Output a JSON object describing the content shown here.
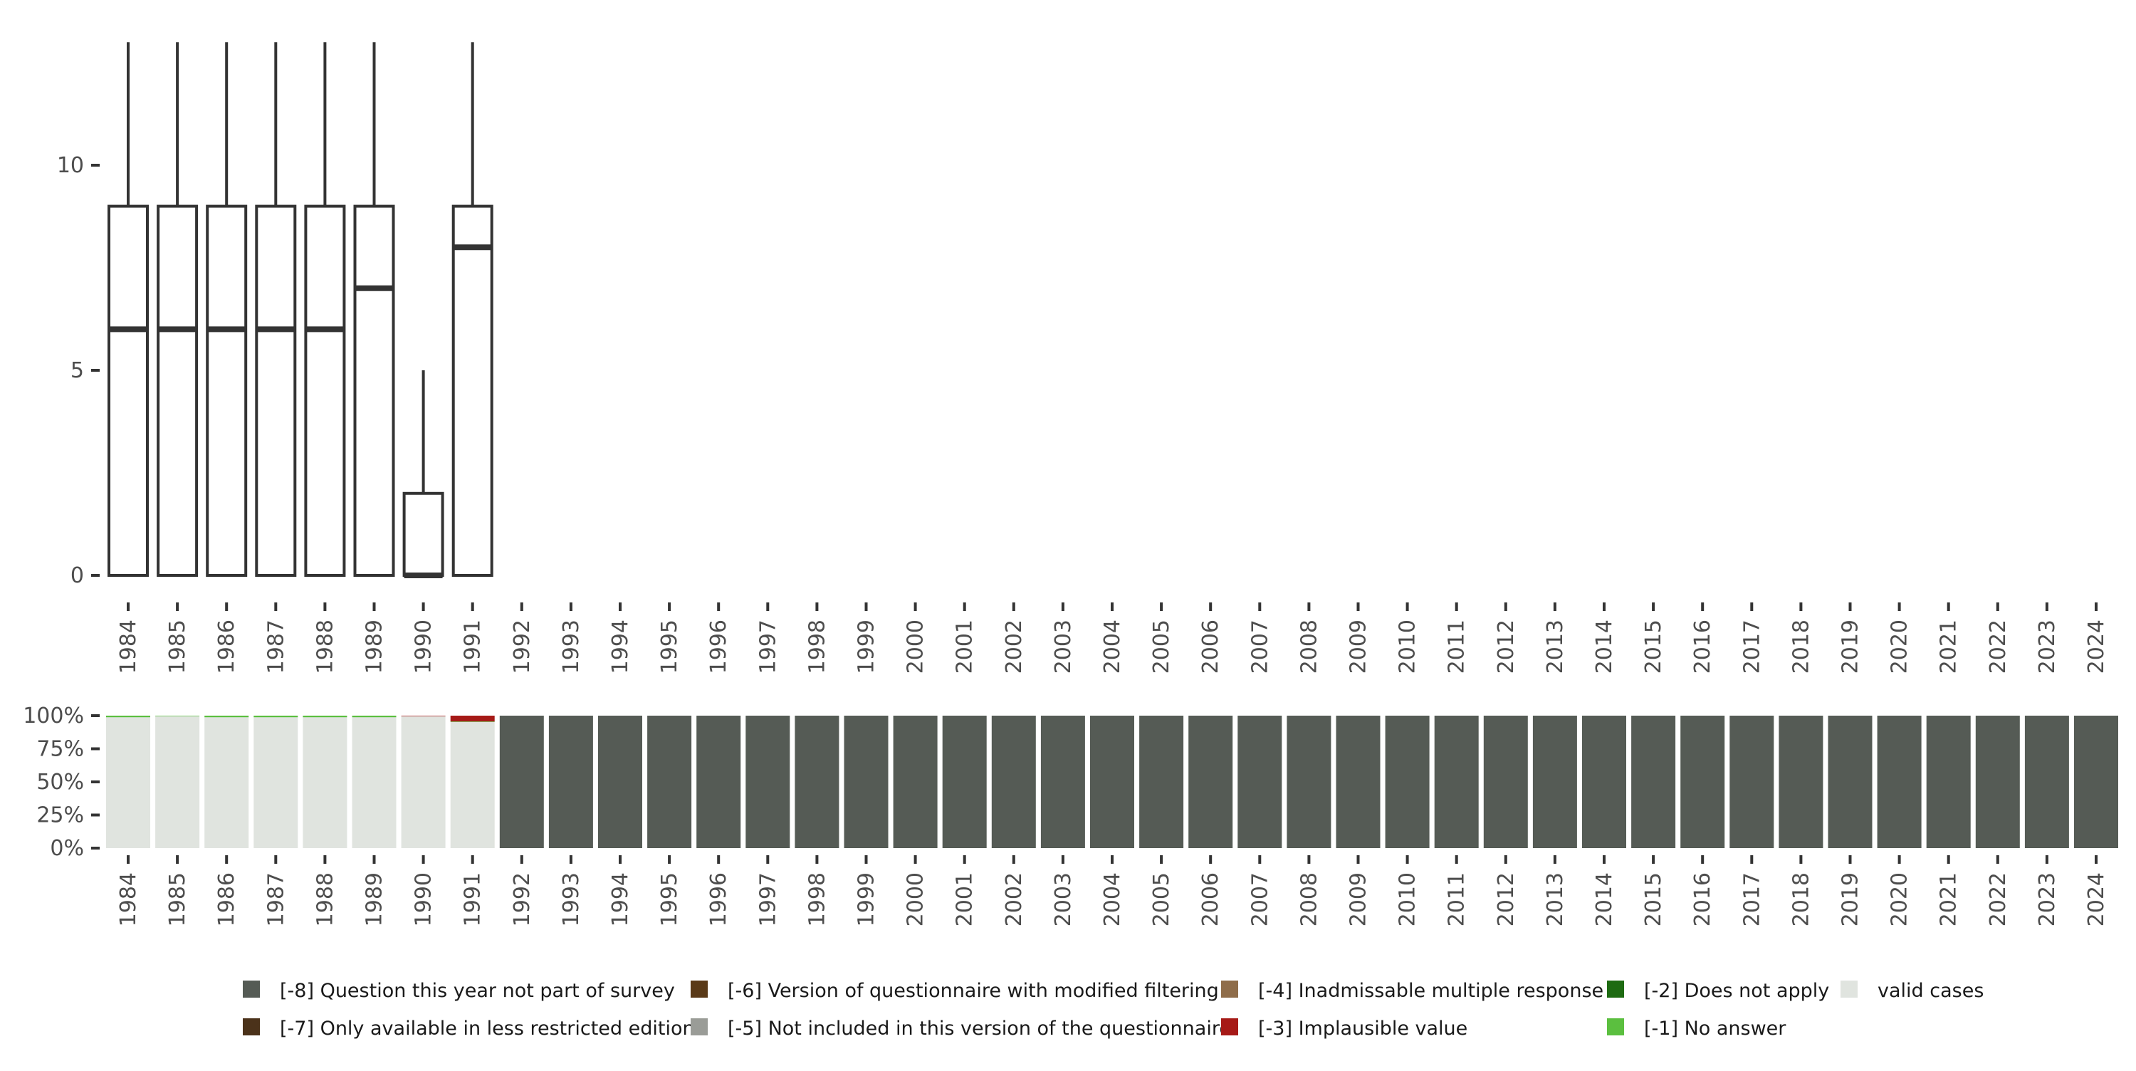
{
  "chart_data": [
    {
      "type": "box",
      "categories": [
        "1984",
        "1985",
        "1986",
        "1987",
        "1988",
        "1989",
        "1990",
        "1991",
        "1992",
        "1993",
        "1994",
        "1995",
        "1996",
        "1997",
        "1998",
        "1999",
        "2000",
        "2001",
        "2002",
        "2003",
        "2004",
        "2005",
        "2006",
        "2007",
        "2008",
        "2009",
        "2010",
        "2011",
        "2012",
        "2013",
        "2014",
        "2015",
        "2016",
        "2017",
        "2018",
        "2019",
        "2020",
        "2021",
        "2022",
        "2023",
        "2024"
      ],
      "boxes": [
        {
          "x": "1984",
          "min": 0,
          "q1": 0,
          "median": 6,
          "q3": 9,
          "max": 13
        },
        {
          "x": "1985",
          "min": 0,
          "q1": 0,
          "median": 6,
          "q3": 9,
          "max": 13
        },
        {
          "x": "1986",
          "min": 0,
          "q1": 0,
          "median": 6,
          "q3": 9,
          "max": 13
        },
        {
          "x": "1987",
          "min": 0,
          "q1": 0,
          "median": 6,
          "q3": 9,
          "max": 13
        },
        {
          "x": "1988",
          "min": 0,
          "q1": 0,
          "median": 6,
          "q3": 9,
          "max": 13
        },
        {
          "x": "1989",
          "min": 0,
          "q1": 0,
          "median": 7,
          "q3": 9,
          "max": 13
        },
        {
          "x": "1990",
          "min": 0,
          "q1": 0,
          "median": 0,
          "q3": 2,
          "max": 5
        },
        {
          "x": "1991",
          "min": 0,
          "q1": 0,
          "median": 8,
          "q3": 9,
          "max": 13
        }
      ],
      "yticks": [
        0,
        5,
        10
      ],
      "ylim": [
        0,
        13
      ],
      "xlabel": "",
      "ylabel": ""
    },
    {
      "type": "bar",
      "stacked": true,
      "categories": [
        "1984",
        "1985",
        "1986",
        "1987",
        "1988",
        "1989",
        "1990",
        "1991",
        "1992",
        "1993",
        "1994",
        "1995",
        "1996",
        "1997",
        "1998",
        "1999",
        "2000",
        "2001",
        "2002",
        "2003",
        "2004",
        "2005",
        "2006",
        "2007",
        "2008",
        "2009",
        "2010",
        "2011",
        "2012",
        "2013",
        "2014",
        "2015",
        "2016",
        "2017",
        "2018",
        "2019",
        "2020",
        "2021",
        "2022",
        "2023",
        "2024"
      ],
      "series": [
        {
          "name": "valid cases",
          "color": "#e0e4df",
          "values": [
            98.8,
            99.6,
            98.8,
            98.8,
            98.8,
            98.8,
            99.6,
            95.2,
            0,
            0,
            0,
            0,
            0,
            0,
            0,
            0,
            0,
            0,
            0,
            0,
            0,
            0,
            0,
            0,
            0,
            0,
            0,
            0,
            0,
            0,
            0,
            0,
            0,
            0,
            0,
            0,
            0,
            0,
            0,
            0,
            0
          ]
        },
        {
          "name": "[-1] No answer",
          "color": "#5bbf3f",
          "values": [
            1.2,
            0.4,
            1.2,
            1.2,
            1.2,
            1.2,
            0,
            0.4,
            0,
            0,
            0,
            0,
            0,
            0,
            0,
            0,
            0,
            0,
            0,
            0,
            0,
            0,
            0,
            0,
            0,
            0,
            0,
            0,
            0,
            0,
            0,
            0,
            0,
            0,
            0,
            0,
            0,
            0,
            0,
            0,
            0
          ]
        },
        {
          "name": "[-3] Implausible value",
          "color": "#a61a17",
          "values": [
            0,
            0,
            0,
            0,
            0,
            0,
            0.4,
            4.4,
            0,
            0,
            0,
            0,
            0,
            0,
            0,
            0,
            0,
            0,
            0,
            0,
            0,
            0,
            0,
            0,
            0,
            0,
            0,
            0,
            0,
            0,
            0,
            0,
            0,
            0,
            0,
            0,
            0,
            0,
            0,
            0,
            0
          ]
        },
        {
          "name": "[-8] Question this year not part of survey",
          "color": "#555b55",
          "values": [
            0,
            0,
            0,
            0,
            0,
            0,
            0,
            0,
            100,
            100,
            100,
            100,
            100,
            100,
            100,
            100,
            100,
            100,
            100,
            100,
            100,
            100,
            100,
            100,
            100,
            100,
            100,
            100,
            100,
            100,
            100,
            100,
            100,
            100,
            100,
            100,
            100,
            100,
            100,
            100,
            100
          ]
        }
      ],
      "yticks": [
        "0%",
        "25%",
        "50%",
        "75%",
        "100%"
      ],
      "ylim": [
        0,
        100
      ]
    }
  ],
  "legend": [
    {
      "label": "[-8] Question this year not part of survey",
      "color": "#555b55"
    },
    {
      "label": "[-7] Only available in less restricted edition",
      "color": "#4b321a"
    },
    {
      "label": "[-6] Version of questionnaire with modified filtering",
      "color": "#5a3a18"
    },
    {
      "label": "[-5] Not included in this version of the questionnaire",
      "color": "#9a9c97"
    },
    {
      "label": "[-4] Inadmissable multiple response",
      "color": "#8f6d4a"
    },
    {
      "label": "[-3] Implausible value",
      "color": "#a61a17"
    },
    {
      "label": "[-2] Does not apply",
      "color": "#1e6b12"
    },
    {
      "label": "[-1] No answer",
      "color": "#5bbf3f"
    },
    {
      "label": "valid cases",
      "color": "#e0e4df"
    }
  ]
}
